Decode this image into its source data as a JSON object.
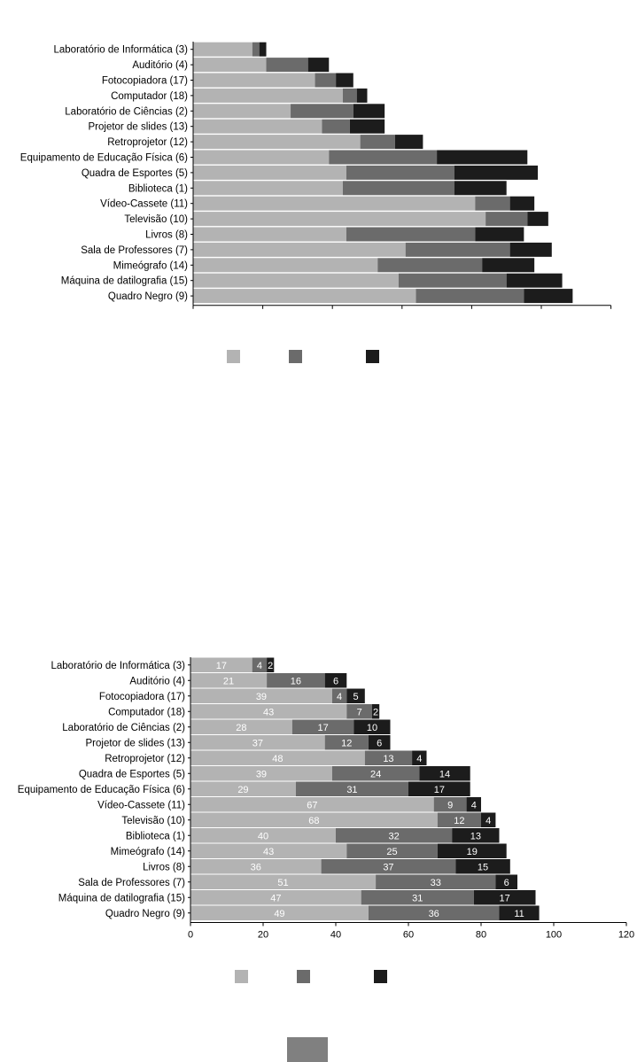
{
  "colors": {
    "s1": "#b3b3b3",
    "s2": "#6b6b6b",
    "s3": "#1c1c1c",
    "axis": "#000000",
    "footer_box": "#808080"
  },
  "chart_data": [
    {
      "type": "bar",
      "orientation": "horizontal",
      "stacked": true,
      "categories": [
        "Laboratório de Informática (3)",
        "Auditório (4)",
        "Fotocopiadora (17)",
        "Computador (18)",
        "Laboratório de Ciências (2)",
        "Projetor de slides (13)",
        "Retroprojetor (12)",
        "Equipamento de Educação Física (6)",
        "Quadra de Esportes (5)",
        "Biblioteca (1)",
        "Vídeo-Cassete (11)",
        "Televisão (10)",
        "Livros (8)",
        "Sala de Professores (7)",
        "Mimeógrafo (14)",
        "Máquina de datilografia (15)",
        "Quadro Negro (9)"
      ],
      "series": [
        {
          "values": [
            17,
            21,
            35,
            43,
            28,
            37,
            48,
            39,
            44,
            43,
            81,
            84,
            44,
            61,
            53,
            59,
            64
          ]
        },
        {
          "values": [
            2,
            12,
            6,
            4,
            18,
            8,
            10,
            31,
            31,
            32,
            10,
            12,
            37,
            30,
            30,
            31,
            31
          ]
        },
        {
          "values": [
            2,
            6,
            5,
            3,
            9,
            10,
            8,
            26,
            24,
            15,
            7,
            6,
            14,
            12,
            15,
            16,
            14
          ]
        }
      ],
      "xlim": [
        0,
        120
      ],
      "x_ticks": [
        "",
        "",
        "",
        "",
        "",
        "",
        ""
      ],
      "legend": "bottom",
      "grid": false
    },
    {
      "type": "bar",
      "orientation": "horizontal",
      "stacked": true,
      "categories": [
        "Laboratório de Informática (3)",
        "Auditório (4)",
        "Fotocopiadora (17)",
        "Computador (18)",
        "Laboratório de Ciências (2)",
        "Projetor de slides (13)",
        "Retroprojetor (12)",
        "Quadra de Esportes (5)",
        "Equipamento de Educação Física (6)",
        "Vídeo-Cassete (11)",
        "Televisão (10)",
        "Biblioteca (1)",
        "Mimeógrafo (14)",
        "Livros (8)",
        "Sala de Professores (7)",
        "Máquina de datilografia (15)",
        "Quadro Negro (9)"
      ],
      "series": [
        {
          "values": [
            17,
            21,
            39,
            43,
            28,
            37,
            48,
            39,
            29,
            67,
            68,
            40,
            43,
            36,
            51,
            47,
            49
          ]
        },
        {
          "values": [
            4,
            16,
            4,
            7,
            17,
            12,
            13,
            24,
            31,
            9,
            12,
            32,
            25,
            37,
            33,
            31,
            36
          ]
        },
        {
          "values": [
            2,
            6,
            5,
            2,
            10,
            6,
            4,
            14,
            17,
            4,
            4,
            13,
            19,
            15,
            6,
            17,
            11
          ]
        }
      ],
      "xlim": [
        0,
        120
      ],
      "x_ticks": [
        "0",
        "20",
        "40",
        "60",
        "80",
        "100",
        "120"
      ],
      "legend": "bottom",
      "grid": false
    }
  ]
}
